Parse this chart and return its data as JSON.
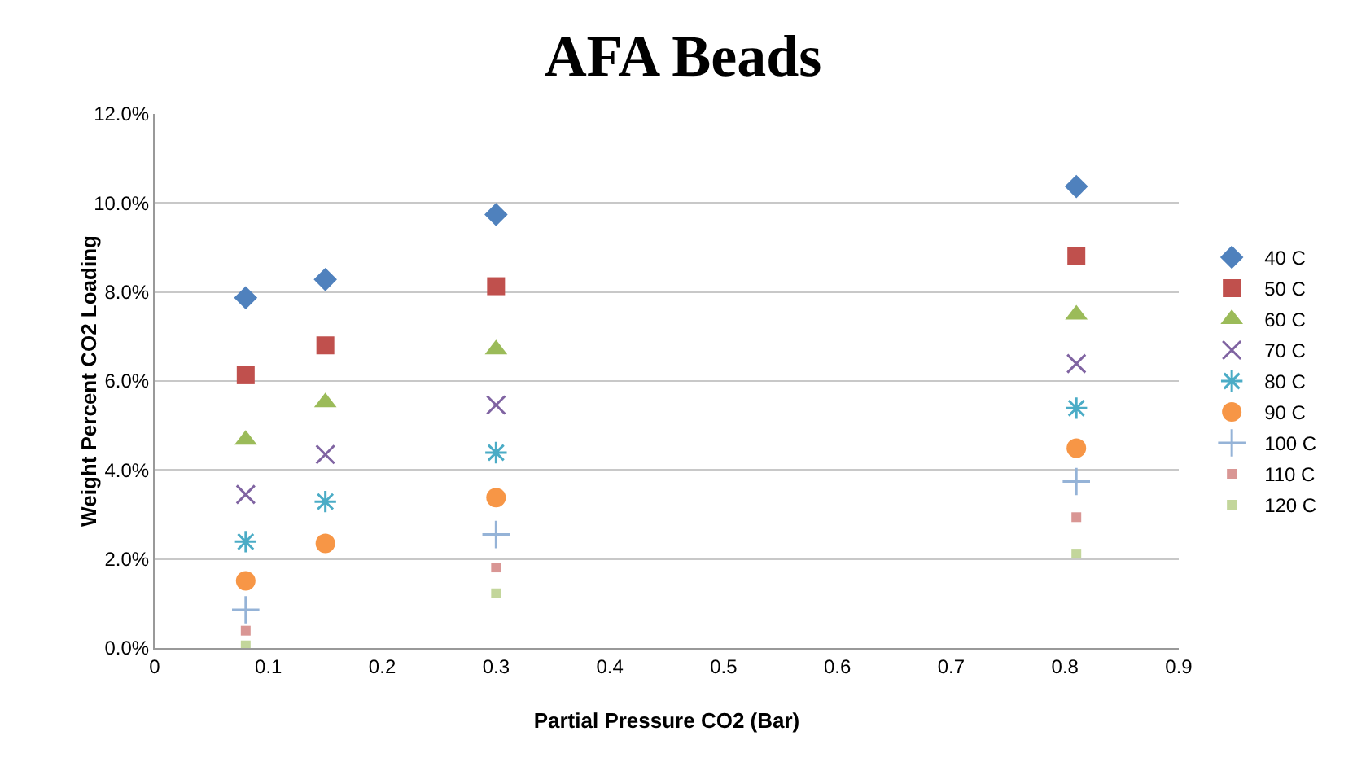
{
  "chart_data": {
    "type": "scatter",
    "title": "AFA Beads",
    "xlabel": "Partial Pressure CO2 (Bar)",
    "ylabel": "Weight Percent CO2 Loading",
    "x": [
      0.08,
      0.15,
      0.3,
      0.81
    ],
    "xlim": [
      0,
      0.9
    ],
    "xticks": [
      0,
      0.1,
      0.2,
      0.3,
      0.4,
      0.5,
      0.6,
      0.7,
      0.8,
      0.9
    ],
    "ylim": [
      0,
      12
    ],
    "yticks": [
      {
        "value": 0,
        "label": "0.0%"
      },
      {
        "value": 2,
        "label": "2.0%"
      },
      {
        "value": 4,
        "label": "4.0%"
      },
      {
        "value": 6,
        "label": "6.0%"
      },
      {
        "value": 8,
        "label": "8.0%"
      },
      {
        "value": 10,
        "label": "10.0%"
      },
      {
        "value": 12,
        "label": "12.0%"
      }
    ],
    "grid": "y",
    "legend": "right",
    "series": [
      {
        "name": "40 C",
        "color": "#4f81bd",
        "marker": "diamond",
        "values": [
          7.87,
          8.28,
          9.74,
          10.37
        ]
      },
      {
        "name": "50 C",
        "color": "#c0504d",
        "marker": "square",
        "values": [
          6.13,
          6.8,
          8.13,
          8.8
        ]
      },
      {
        "name": "60 C",
        "color": "#9bbb59",
        "marker": "triangle",
        "values": [
          4.68,
          5.52,
          6.71,
          7.49
        ]
      },
      {
        "name": "70 C",
        "color": "#8064a2",
        "marker": "x",
        "values": [
          3.45,
          4.35,
          5.46,
          6.39
        ]
      },
      {
        "name": "80 C",
        "color": "#4bacc6",
        "marker": "cross",
        "values": [
          2.39,
          3.29,
          4.39,
          5.39
        ]
      },
      {
        "name": "90 C",
        "color": "#f79646",
        "marker": "circle",
        "values": [
          1.51,
          2.35,
          3.38,
          4.49
        ]
      },
      {
        "name": "100 C",
        "color": "#95b3d7",
        "marker": "plus",
        "values": [
          0.86,
          null,
          2.55,
          3.74
        ]
      },
      {
        "name": "110 C",
        "color": "#d99694",
        "values": [
          0.39,
          null,
          1.81,
          2.94
        ]
      },
      {
        "name": "120 C",
        "color": "#c3d69b",
        "values": [
          0.06,
          null,
          1.23,
          2.12
        ]
      }
    ]
  }
}
